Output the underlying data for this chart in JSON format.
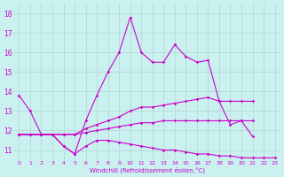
{
  "xlabel": "Windchill (Refroidissement éolien,°C)",
  "bg_color": "#caf0f0",
  "line_color": "#cc00cc",
  "grid_color": "#b0d8d0",
  "series": {
    "upper": [
      13.8,
      13.0,
      11.8,
      11.8,
      11.2,
      10.8,
      12.5,
      13.8,
      15.0,
      16.0,
      17.8,
      16.0,
      15.5,
      15.5,
      16.4,
      15.8,
      15.5,
      15.6,
      13.5,
      12.3,
      12.5,
      11.7,
      null,
      null
    ],
    "mid_upper": [
      11.8,
      11.8,
      11.8,
      11.8,
      11.8,
      11.8,
      12.1,
      12.3,
      12.5,
      12.7,
      13.0,
      13.2,
      13.2,
      13.3,
      13.4,
      13.5,
      13.6,
      13.7,
      13.5,
      13.5,
      13.5,
      13.5,
      null,
      null
    ],
    "mid_lower": [
      11.8,
      11.8,
      11.8,
      11.8,
      11.8,
      11.8,
      11.9,
      12.0,
      12.1,
      12.2,
      12.3,
      12.4,
      12.4,
      12.5,
      12.5,
      12.5,
      12.5,
      12.5,
      12.5,
      12.5,
      12.5,
      12.5,
      null,
      null
    ],
    "lower": [
      11.8,
      11.8,
      11.8,
      11.8,
      11.2,
      10.8,
      11.2,
      11.5,
      11.5,
      11.4,
      11.3,
      11.2,
      11.1,
      11.0,
      11.0,
      10.9,
      10.8,
      10.8,
      10.7,
      10.7,
      10.6,
      10.6,
      10.6,
      10.6
    ]
  },
  "ylim": [
    10.5,
    18.5
  ],
  "yticks": [
    11,
    12,
    13,
    14,
    15,
    16,
    17,
    18
  ],
  "xlim": [
    -0.5,
    23.5
  ],
  "xticks": [
    0,
    1,
    2,
    3,
    4,
    5,
    6,
    7,
    8,
    9,
    10,
    11,
    12,
    13,
    14,
    15,
    16,
    17,
    18,
    19,
    20,
    21,
    22,
    23
  ]
}
